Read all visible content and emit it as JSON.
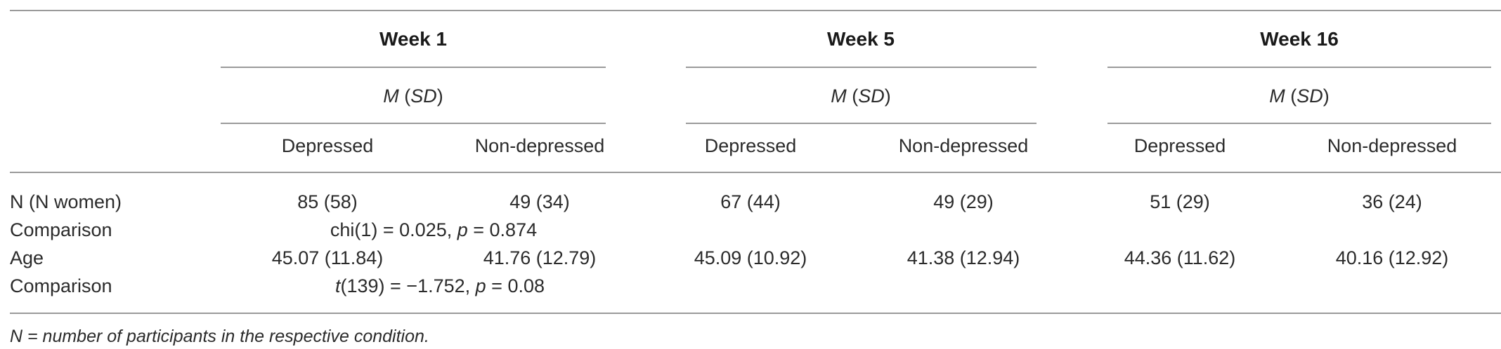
{
  "header": {
    "weeks": [
      "Week 1",
      "Week 5",
      "Week 16"
    ],
    "stat_m": "M",
    "stat_sd": "SD",
    "sub_depressed": "Depressed",
    "sub_nondepressed": "Non-depressed"
  },
  "rows": {
    "n_label": "N (N women)",
    "n_values": [
      "85 (58)",
      "49 (34)",
      "67 (44)",
      "49 (29)",
      "51 (29)",
      "36 (24)"
    ],
    "comp1_label": "Comparison",
    "comp1_text": "chi(1) = 0.025, ",
    "comp1_p": "p",
    "comp1_tail": " = 0.874",
    "age_label": "Age",
    "age_values": [
      "45.07 (11.84)",
      "41.76 (12.79)",
      "45.09 (10.92)",
      "41.38 (12.94)",
      "44.36 (11.62)",
      "40.16 (12.92)"
    ],
    "comp2_label": "Comparison",
    "comp2_t": "t",
    "comp2_text": "(139) = −1.752, ",
    "comp2_p": "p",
    "comp2_tail": " = 0.08"
  },
  "footnote": "N = number of participants in the respective condition."
}
